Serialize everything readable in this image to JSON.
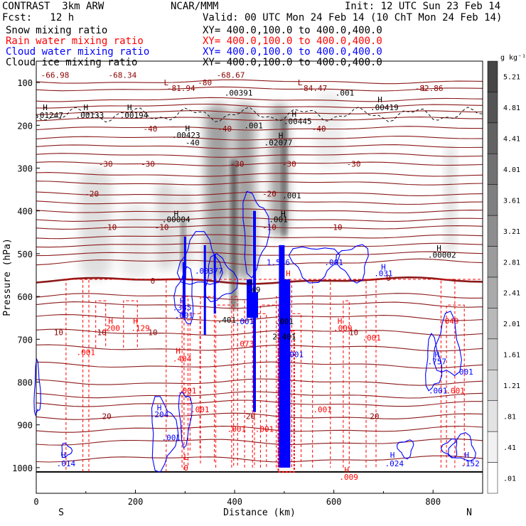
{
  "header": {
    "model": "CONTRAST  3km ARW",
    "org": "NCAR/MMM",
    "init": "Init: 12 UTC Sun 23 Feb 14",
    "fcst": "Fcst:   12 h",
    "valid": "Valid: 00 UTC Mon 24 Feb 14 (10 ChT Mon 24 Feb 14)"
  },
  "legend": [
    {
      "label": "Snow mixing ratio",
      "xy": "XY= 400.0,100.0 to 400.0,400.0",
      "color": "#000000"
    },
    {
      "label": "Rain water mixing ratio",
      "xy": "XY= 400.0,100.0 to 400.0,400.0",
      "color": "#ff0000"
    },
    {
      "label": "Cloud water mixing ratio",
      "xy": "XY= 400.0,100.0 to 400.0,400.0",
      "color": "#0000ff"
    },
    {
      "label": "Cloud ice mixing ratio",
      "xy": "XY= 400.0,100.0 to 400.0,400.0",
      "color": "#000000"
    }
  ],
  "chart_data": {
    "type": "heatmap",
    "xlabel": "Distance (km)",
    "ylabel": "Pressure (hPa)",
    "xlim": [
      0,
      900
    ],
    "ylim": [
      1060,
      50
    ],
    "x_ticks": [
      "0",
      "200",
      "400",
      "600",
      "800"
    ],
    "y_ticks": [
      "100",
      "200",
      "300",
      "400",
      "500",
      "600",
      "700",
      "800",
      "900",
      "1000"
    ],
    "end_labels": {
      "left": "S",
      "right": "N"
    },
    "colorbar": {
      "unit": "g kg⁻¹",
      "labels": [
        "5.21",
        "4.81",
        "4.41",
        "4.01",
        "3.61",
        "3.21",
        "2.81",
        "2.41",
        "2.01",
        "1.61",
        "1.21",
        ".81",
        ".41",
        ".01"
      ]
    },
    "temperature_isotherms": [
      {
        "value": -40,
        "labels": [
          {
            "x": 380,
            "p": 208,
            "text": "-40"
          },
          {
            "x": 570,
            "p": 208,
            "text": "-40"
          },
          {
            "x": 230,
            "p": 208,
            "text": "-40"
          }
        ]
      },
      {
        "value": -30,
        "labels": [
          {
            "x": 140,
            "p": 290,
            "text": "-30"
          },
          {
            "x": 225,
            "p": 290,
            "text": "-30"
          },
          {
            "x": 405,
            "p": 290,
            "text": "-30"
          },
          {
            "x": 510,
            "p": 290,
            "text": "-30"
          },
          {
            "x": 640,
            "p": 290,
            "text": "-30"
          }
        ]
      },
      {
        "value": -20,
        "labels": [
          {
            "x": 112,
            "p": 360,
            "text": "-20"
          },
          {
            "x": 470,
            "p": 360,
            "text": "-20"
          }
        ]
      },
      {
        "value": -10,
        "labels": [
          {
            "x": 148,
            "p": 438,
            "text": "-10"
          },
          {
            "x": 253,
            "p": 438,
            "text": "-10"
          },
          {
            "x": 470,
            "p": 438,
            "text": "-10"
          },
          {
            "x": 603,
            "p": 438,
            "text": "-10"
          }
        ]
      },
      {
        "value": 0,
        "labels": [
          {
            "x": 235,
            "p": 563,
            "text": "0"
          },
          {
            "x": 710,
            "p": 557,
            "text": "0"
          }
        ]
      },
      {
        "value": 10,
        "labels": [
          {
            "x": 45,
            "p": 684,
            "text": "10"
          },
          {
            "x": 132,
            "p": 684,
            "text": "10"
          },
          {
            "x": 235,
            "p": 684,
            "text": "10"
          },
          {
            "x": 640,
            "p": 684,
            "text": "10"
          }
        ]
      },
      {
        "value": 20,
        "labels": [
          {
            "x": 142,
            "p": 880,
            "text": "20"
          },
          {
            "x": 432,
            "p": 880,
            "text": "20"
          },
          {
            "x": 682,
            "p": 880,
            "text": "20"
          }
        ]
      }
    ],
    "annotations": [
      {
        "x": 38,
        "p": 82,
        "text": "-66.98",
        "color": "#8b0000"
      },
      {
        "x": 174,
        "p": 82,
        "text": "-68.34",
        "color": "#8b0000"
      },
      {
        "x": 392,
        "p": 82,
        "text": "-68.67",
        "color": "#8b0000"
      },
      {
        "x": 262,
        "p": 100,
        "text": "L",
        "color": "#8b0000"
      },
      {
        "x": 340,
        "p": 100,
        "text": "-80",
        "color": "#8b0000"
      },
      {
        "x": 532,
        "p": 100,
        "text": "L",
        "color": "#8b0000"
      },
      {
        "x": 292,
        "p": 113,
        "text": "-81.94",
        "color": "#8b0000"
      },
      {
        "x": 558,
        "p": 113,
        "text": "-84.47",
        "color": "#8b0000"
      },
      {
        "x": 783,
        "p": 113,
        "text": "L",
        "color": "#8b0000"
      },
      {
        "x": 792,
        "p": 113,
        "text": "-82.86",
        "color": "#8b0000"
      },
      {
        "x": 408,
        "p": 124,
        "text": ".00391",
        "color": "#000000"
      },
      {
        "x": 622,
        "p": 124,
        "text": ".001",
        "color": "#000000"
      },
      {
        "x": 693,
        "p": 140,
        "text": "H",
        "color": "#000000"
      },
      {
        "x": 702,
        "p": 158,
        "text": ".00419",
        "color": "#000000"
      },
      {
        "x": 18,
        "p": 158,
        "text": "H",
        "color": "#000000"
      },
      {
        "x": 26,
        "p": 176,
        "text": ".01247",
        "color": "#000000"
      },
      {
        "x": 100,
        "p": 158,
        "text": "H",
        "color": "#000000"
      },
      {
        "x": 108,
        "p": 176,
        "text": ".00133",
        "color": "#000000"
      },
      {
        "x": 188,
        "p": 158,
        "text": "H",
        "color": "#000000"
      },
      {
        "x": 197,
        "p": 176,
        "text": ".00194",
        "color": "#000000"
      },
      {
        "x": 520,
        "p": 174,
        "text": "H",
        "color": "#000000"
      },
      {
        "x": 527,
        "p": 190,
        "text": ".00445",
        "color": "#000000"
      },
      {
        "x": 438,
        "p": 200,
        "text": ".001",
        "color": "#000000"
      },
      {
        "x": 305,
        "p": 207,
        "text": "H",
        "color": "#000000"
      },
      {
        "x": 302,
        "p": 223,
        "text": ".00423",
        "color": "#000000"
      },
      {
        "x": 493,
        "p": 224,
        "text": "H",
        "color": "#000000"
      },
      {
        "x": 488,
        "p": 240,
        "text": ".02077",
        "color": "#000000"
      },
      {
        "x": 315,
        "p": 240,
        "text": "-40",
        "color": "#000000"
      },
      {
        "x": 515,
        "p": 364,
        "text": ".001",
        "color": "#000000"
      },
      {
        "x": 282,
        "p": 406,
        "text": "H",
        "color": "#000000"
      },
      {
        "x": 282,
        "p": 420,
        "text": ".00004",
        "color": "#000000"
      },
      {
        "x": 498,
        "p": 406,
        "text": "H",
        "color": "#000000"
      },
      {
        "x": 488,
        "p": 420,
        "text": ".001",
        "color": "#000000"
      },
      {
        "x": 812,
        "p": 487,
        "text": "H",
        "color": "#000000"
      },
      {
        "x": 818,
        "p": 503,
        "text": ".00002",
        "color": "#000000"
      },
      {
        "x": 348,
        "p": 540,
        "text": ".00377",
        "color": "#0000ff"
      },
      {
        "x": 600,
        "p": 520,
        "text": ".001",
        "color": "#0000ff"
      },
      {
        "x": 488,
        "p": 520,
        "text": "1.586",
        "color": "#0000ff"
      },
      {
        "x": 700,
        "p": 531,
        "text": "H",
        "color": "#0000ff"
      },
      {
        "x": 700,
        "p": 546,
        "text": ".031",
        "color": "#0000ff"
      },
      {
        "x": 508,
        "p": 546,
        "text": "H",
        "color": "#ff0000"
      },
      {
        "x": 430,
        "p": 568,
        "text": "H",
        "color": "#000000"
      },
      {
        "x": 438,
        "p": 584,
        "text": ".49",
        "color": "#000000"
      },
      {
        "x": 294,
        "p": 610,
        "text": "H",
        "color": "#0000ff"
      },
      {
        "x": 294,
        "p": 626,
        "text": ".385",
        "color": "#0000ff"
      },
      {
        "x": 298,
        "p": 644,
        "text": ".001",
        "color": "#0000ff"
      },
      {
        "x": 384,
        "p": 655,
        "text": ".401",
        "color": "#000000"
      },
      {
        "x": 420,
        "p": 658,
        "text": ".001",
        "color": "#0000ff"
      },
      {
        "x": 500,
        "p": 658,
        "text": ".001",
        "color": "#000000"
      },
      {
        "x": 150,
        "p": 657,
        "text": "H",
        "color": "#ff0000"
      },
      {
        "x": 150,
        "p": 674,
        "text": ".200",
        "color": "#ff0000"
      },
      {
        "x": 200,
        "p": 657,
        "text": "H",
        "color": "#ff0000"
      },
      {
        "x": 210,
        "p": 674,
        "text": ".129",
        "color": "#ff0000"
      },
      {
        "x": 612,
        "p": 657,
        "text": "H",
        "color": "#ff0000"
      },
      {
        "x": 618,
        "p": 674,
        "text": ".009",
        "color": "#ff0000"
      },
      {
        "x": 833,
        "p": 657,
        "text": ".049",
        "color": "#ff0000"
      },
      {
        "x": 500,
        "p": 694,
        "text": "2.401",
        "color": "#000000"
      },
      {
        "x": 420,
        "p": 710,
        "text": ".073",
        "color": "#ff0000"
      },
      {
        "x": 676,
        "p": 696,
        "text": ".001",
        "color": "#ff0000"
      },
      {
        "x": 100,
        "p": 730,
        "text": ".001",
        "color": "#ff0000"
      },
      {
        "x": 286,
        "p": 727,
        "text": "H",
        "color": "#ff0000"
      },
      {
        "x": 294,
        "p": 745,
        "text": ".404",
        "color": "#ff0000"
      },
      {
        "x": 520,
        "p": 735,
        "text": ".001",
        "color": "#0000ff"
      },
      {
        "x": 808,
        "p": 736,
        "text": "H",
        "color": "#0000ff"
      },
      {
        "x": 808,
        "p": 752,
        "text": ".757",
        "color": "#0000ff"
      },
      {
        "x": 862,
        "p": 776,
        "text": ".001",
        "color": "#0000ff"
      },
      {
        "x": 304,
        "p": 820,
        "text": ".001",
        "color": "#ff0000"
      },
      {
        "x": 810,
        "p": 820,
        "text": ".001",
        "color": "#0000ff"
      },
      {
        "x": 845,
        "p": 820,
        "text": ".001",
        "color": "#ff0000"
      },
      {
        "x": 248,
        "p": 860,
        "text": "H",
        "color": "#0000ff"
      },
      {
        "x": 248,
        "p": 876,
        "text": ".204",
        "color": "#0000ff"
      },
      {
        "x": 330,
        "p": 864,
        "text": ".001",
        "color": "#ff0000"
      },
      {
        "x": 577,
        "p": 864,
        "text": ".001",
        "color": "#ff0000"
      },
      {
        "x": 404,
        "p": 910,
        "text": ".001",
        "color": "#ff0000"
      },
      {
        "x": 460,
        "p": 910,
        "text": ".001",
        "color": "#ff0000"
      },
      {
        "x": 272,
        "p": 930,
        "text": ".001",
        "color": "#0000ff"
      },
      {
        "x": 55,
        "p": 970,
        "text": "H",
        "color": "#0000ff"
      },
      {
        "x": 60,
        "p": 990,
        "text": ".014",
        "color": "#0000ff"
      },
      {
        "x": 718,
        "p": 970,
        "text": "H",
        "color": "#0000ff"
      },
      {
        "x": 722,
        "p": 990,
        "text": ".024",
        "color": "#0000ff"
      },
      {
        "x": 868,
        "p": 970,
        "text": "H",
        "color": "#0000ff"
      },
      {
        "x": 875,
        "p": 990,
        "text": ".152",
        "color": "#0000ff"
      },
      {
        "x": 302,
        "p": 975,
        "text": "L",
        "color": "#ff0000"
      },
      {
        "x": 302,
        "p": 1000,
        "text": "0",
        "color": "#ff0000"
      },
      {
        "x": 626,
        "p": 1005,
        "text": "H",
        "color": "#ff0000"
      },
      {
        "x": 630,
        "p": 1022,
        "text": ".009",
        "color": "#ff0000"
      }
    ]
  }
}
